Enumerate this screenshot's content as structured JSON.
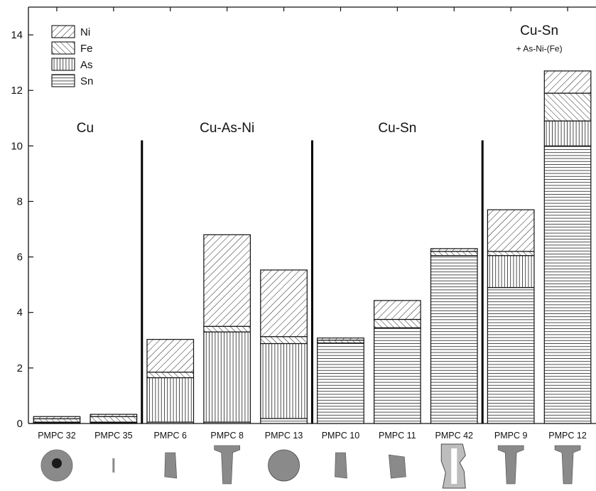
{
  "chart_data": {
    "type": "bar",
    "stacked": true,
    "ylim": [
      0,
      15
    ],
    "yticks": [
      0,
      2,
      4,
      6,
      8,
      10,
      12,
      14
    ],
    "categories": [
      "PMPC 32",
      "PMPC 35",
      "PMPC 6",
      "PMPC 8",
      "PMPC 13",
      "PMPC 10",
      "PMPC 11",
      "PMPC 42",
      "PMPC 9",
      "PMPC 12"
    ],
    "series": [
      {
        "name": "Sn",
        "pattern": "horizontal-lines",
        "values": [
          0.02,
          0.02,
          0.05,
          0.05,
          0.18,
          2.9,
          3.45,
          6.05,
          4.9,
          10.0
        ]
      },
      {
        "name": "As",
        "pattern": "vertical-lines",
        "values": [
          0.03,
          0.03,
          1.6,
          3.25,
          2.7,
          0.0,
          0.0,
          0.0,
          1.15,
          0.9
        ]
      },
      {
        "name": "Fe",
        "pattern": "diagonal-lines",
        "values": [
          0.12,
          0.2,
          0.2,
          0.2,
          0.25,
          0.1,
          0.3,
          0.15,
          0.15,
          1.0
        ]
      },
      {
        "name": "Ni",
        "pattern": "back-diagonal-lines",
        "values": [
          0.08,
          0.08,
          1.18,
          3.3,
          2.4,
          0.08,
          0.68,
          0.1,
          1.5,
          0.8
        ]
      }
    ],
    "groups": [
      {
        "label": "Cu",
        "sublabel": "",
        "start": 0,
        "end": 1
      },
      {
        "label": "Cu-As-Ni",
        "sublabel": "",
        "start": 2,
        "end": 4
      },
      {
        "label": "Cu-Sn",
        "sublabel": "",
        "start": 5,
        "end": 7
      },
      {
        "label": "Cu-Sn",
        "sublabel": "+ As-Ni-(Fe)",
        "start": 8,
        "end": 9
      }
    ],
    "legend": {
      "position": "top-left",
      "order": [
        "Ni",
        "Fe",
        "As",
        "Sn"
      ]
    },
    "artifact_icons": [
      "bead-icon",
      "rod-icon",
      "chisel-icon",
      "axe-icon",
      "disc-icon",
      "chisel-icon",
      "fragment-icon",
      "bracelet-icon",
      "axe-icon",
      "axe-icon"
    ]
  }
}
